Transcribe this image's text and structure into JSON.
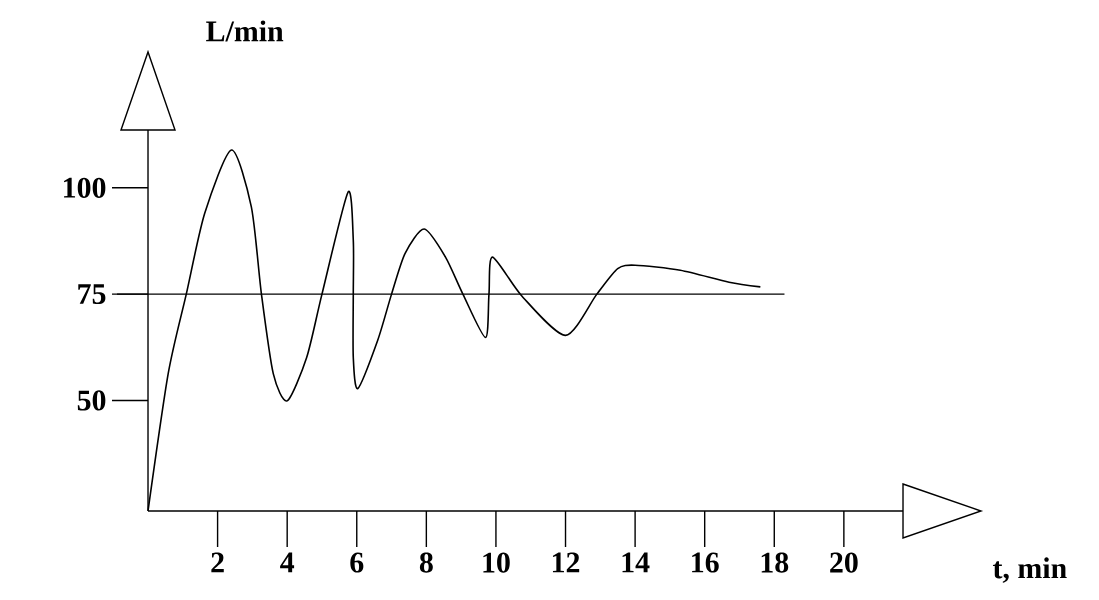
{
  "chart_data": {
    "type": "line",
    "xlabel": "t, min",
    "ylabel": "L/min",
    "color": "#000000",
    "line_style": "solid",
    "x": [
      0,
      0.58,
      1.1,
      1.63,
      2.4,
      2.97,
      3.26,
      3.6,
      4.0,
      4.56,
      5.0,
      5.75,
      5.9,
      5.9,
      5.9,
      6.03,
      6.6,
      7.0,
      7.39,
      7.94,
      8.55,
      9.05,
      9.7,
      9.8,
      9.9,
      10.75,
      12.0,
      12.9,
      13.5,
      14.0,
      15.3,
      16.7,
      17.6
    ],
    "values": [
      24,
      56.3,
      75,
      94,
      108.9,
      95.5,
      75,
      56.3,
      49.9,
      60.1,
      75,
      99,
      87.7,
      75,
      60.1,
      52.8,
      64.1,
      75,
      84.6,
      90.3,
      83.7,
      75,
      64.8,
      75,
      83.7,
      74.5,
      65.3,
      75,
      81,
      81.8,
      80.6,
      77.8,
      76.7
    ],
    "xlim": [
      0,
      21.7
    ],
    "ylim": [
      24,
      113.6
    ],
    "xticks": [
      2,
      4,
      6,
      8,
      10,
      12,
      14,
      16,
      18,
      20
    ],
    "yticks": [
      50,
      75,
      100
    ],
    "ref_lines": [
      {
        "axis": "y",
        "value": 75,
        "color": "#000000"
      }
    ]
  }
}
